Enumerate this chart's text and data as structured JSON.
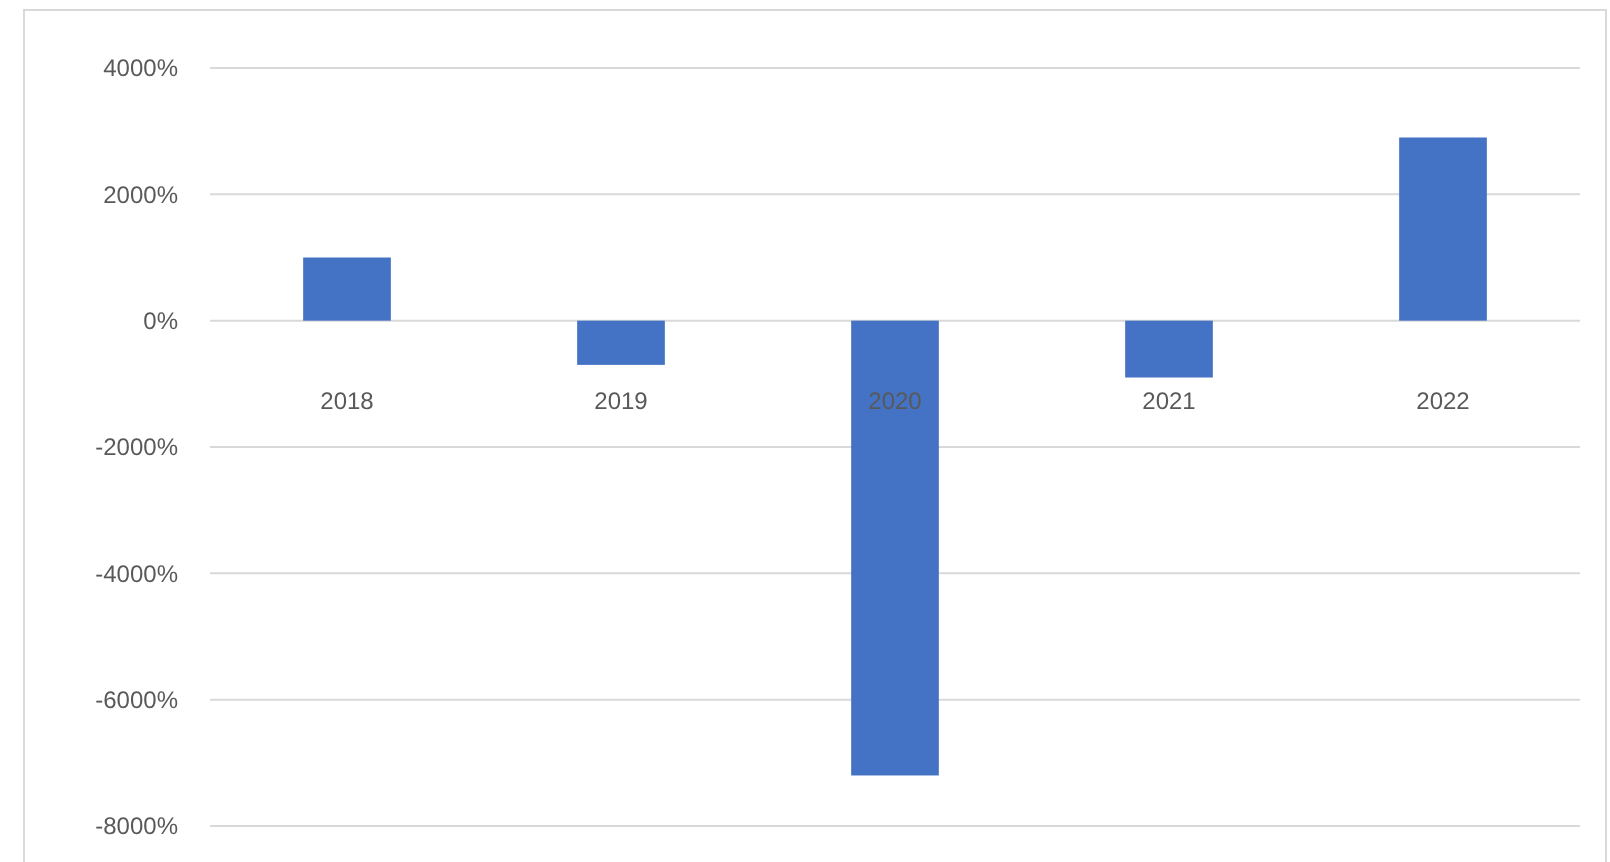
{
  "chart_data": {
    "type": "bar",
    "categories": [
      "2018",
      "2019",
      "2020",
      "2021",
      "2022"
    ],
    "values": [
      1000,
      -700,
      -7200,
      -900,
      2900
    ],
    "color": "#4472c4",
    "ylim": [
      -8000,
      4000
    ],
    "yticks": [
      {
        "value": -8000,
        "label": "-8000%"
      },
      {
        "value": -6000,
        "label": "-6000%"
      },
      {
        "value": -4000,
        "label": "-4000%"
      },
      {
        "value": -2000,
        "label": "-2000%"
      },
      {
        "value": 0,
        "label": "0%"
      },
      {
        "value": 2000,
        "label": "2000%"
      },
      {
        "value": 4000,
        "label": "4000%"
      }
    ],
    "grid": "y"
  }
}
